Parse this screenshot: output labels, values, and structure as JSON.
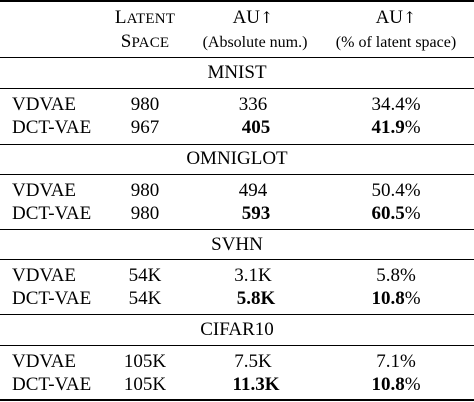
{
  "table": {
    "columns": {
      "latent_space": {
        "line1": "Latent",
        "line2": "Space"
      },
      "au_abs": {
        "title": "AU",
        "arrow": "↑",
        "sub": "(Absolute num.)"
      },
      "au_pct": {
        "title": "AU",
        "arrow": "↑",
        "sub": "(% of latent space)"
      }
    },
    "sections": [
      {
        "name": "MNIST",
        "rows": [
          {
            "model": "VDVAE",
            "latent": "980",
            "au_abs": "336",
            "au_pct_num": "34.4",
            "pct": "%",
            "bold": false
          },
          {
            "model": "DCT-VAE",
            "latent": "967",
            "au_abs": "405",
            "au_pct_num": "41.9",
            "pct": "%",
            "bold": true
          }
        ]
      },
      {
        "name": "OMNIGLOT",
        "rows": [
          {
            "model": "VDVAE",
            "latent": "980",
            "au_abs": "494",
            "au_pct_num": "50.4",
            "pct": "%",
            "bold": false
          },
          {
            "model": "DCT-VAE",
            "latent": "980",
            "au_abs": "593",
            "au_pct_num": "60.5",
            "pct": "%",
            "bold": true
          }
        ]
      },
      {
        "name": "SVHN",
        "rows": [
          {
            "model": "VDVAE",
            "latent": "54K",
            "au_abs": "3.1K",
            "au_pct_num": "5.8",
            "pct": "%",
            "bold": false
          },
          {
            "model": "DCT-VAE",
            "latent": "54K",
            "au_abs": "5.8K",
            "au_pct_num": "10.8",
            "pct": "%",
            "bold": true
          }
        ]
      },
      {
        "name": "CIFAR10",
        "rows": [
          {
            "model": "VDVAE",
            "latent": "105K",
            "au_abs": "7.5K",
            "au_pct_num": "7.1",
            "pct": "%",
            "bold": false
          },
          {
            "model": "DCT-VAE",
            "latent": "105K",
            "au_abs": "11.3K",
            "au_pct_num": "10.8",
            "pct": "%",
            "bold": true
          }
        ]
      }
    ]
  }
}
